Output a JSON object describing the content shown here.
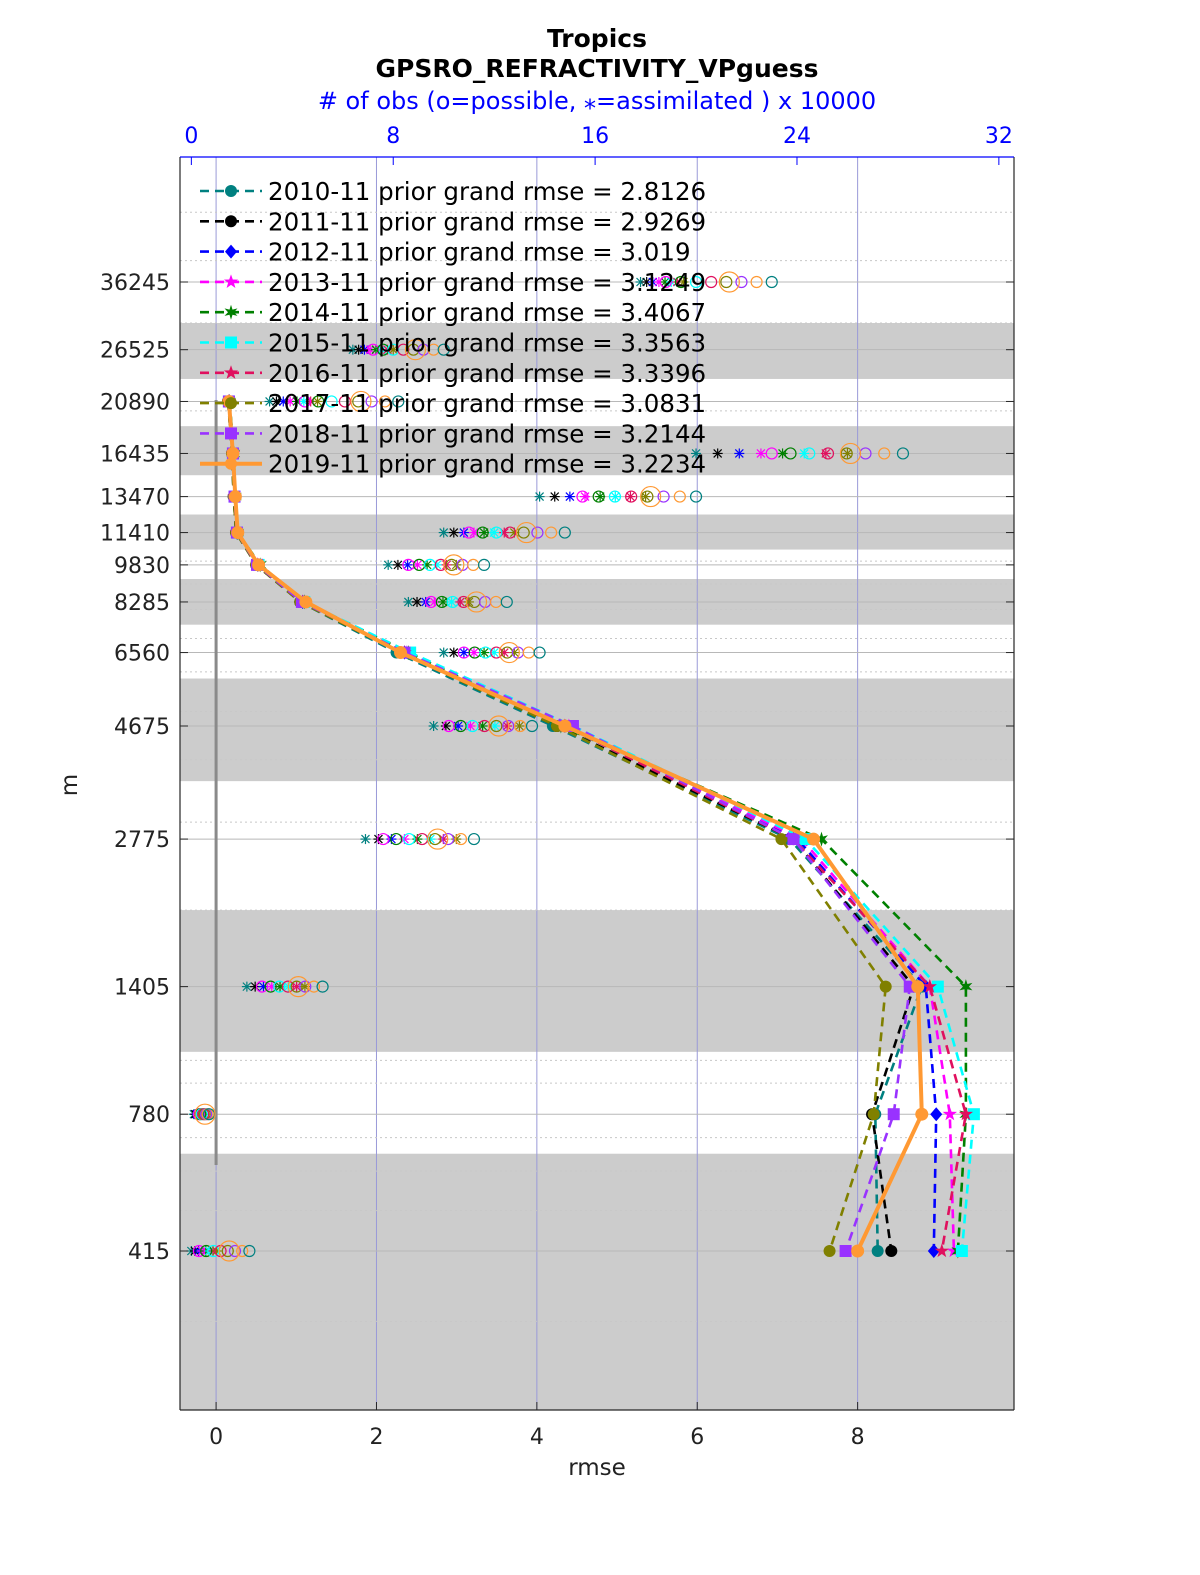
{
  "chart_data": {
    "type": "line",
    "title": "Tropics",
    "subtitle": "GPSRO_REFRACTIVITY_VPguess",
    "top_axis_label": "# of obs (o=possible, ⁎=assimilated ) x 10000",
    "xlabel": "rmse",
    "ylabel": "m",
    "xlim": [
      -0.45,
      9.95
    ],
    "x_ticks": [
      "0",
      "2",
      "4",
      "6",
      "8"
    ],
    "top_xlim": [
      -0.45,
      32.6
    ],
    "top_x_ticks": [
      "0",
      "8",
      "16",
      "24",
      "32"
    ],
    "y_scale": "log",
    "y_ticks": [
      "36245",
      "26525",
      "20890",
      "16435",
      "13470",
      "11410",
      "9830",
      "8285",
      "6560",
      "4675",
      "2775",
      "1405",
      "780",
      "415"
    ],
    "y_tick_values": [
      36245,
      26525,
      20890,
      16435,
      13470,
      11410,
      9830,
      8285,
      6560,
      4675,
      2775,
      1405,
      780,
      415
    ],
    "shaded_bands": [
      [
        23175,
        30000
      ],
      [
        14865,
        18640
      ],
      [
        10550,
        12400
      ],
      [
        7460,
        9210
      ],
      [
        3625,
        5820
      ],
      [
        1040,
        2000
      ],
      [
        170,
        650
      ]
    ],
    "legend_location": "top-left",
    "grid": true,
    "series": [
      {
        "name": "2010-11 prior grand rmse = 2.8126",
        "color": "#008080",
        "marker": "circle",
        "dashed": true,
        "y": [
          20890,
          16435,
          13470,
          11410,
          9830,
          8285,
          6560,
          4675,
          2775,
          1405,
          780,
          415
        ],
        "values": [
          0.15,
          0.2,
          0.22,
          0.25,
          0.5,
          1.05,
          2.25,
          4.2,
          7.15,
          8.8,
          8.22,
          8.25
        ]
      },
      {
        "name": "2011-11 prior grand rmse = 2.9269",
        "color": "#000000",
        "marker": "circle",
        "dashed": true,
        "y": [
          20890,
          16435,
          13470,
          11410,
          9830,
          8285,
          6560,
          4675,
          2775,
          1405,
          780,
          415
        ],
        "values": [
          0.15,
          0.2,
          0.22,
          0.25,
          0.5,
          1.05,
          2.3,
          4.25,
          7.2,
          8.7,
          8.18,
          8.42
        ]
      },
      {
        "name": "2012-11 prior grand rmse = 3.019",
        "color": "#0000ff",
        "marker": "diamond",
        "dashed": true,
        "y": [
          20890,
          16435,
          13470,
          11410,
          9830,
          8285,
          6560,
          4675,
          2775,
          1405,
          780,
          415
        ],
        "values": [
          0.16,
          0.21,
          0.23,
          0.26,
          0.52,
          1.08,
          2.35,
          4.35,
          7.25,
          8.85,
          8.98,
          8.95
        ]
      },
      {
        "name": "2013-11 prior grand rmse = 3.1249",
        "color": "#ff00ff",
        "marker": "star",
        "dashed": true,
        "y": [
          20890,
          16435,
          13470,
          11410,
          9830,
          8285,
          6560,
          4675,
          2775,
          1405,
          780,
          415
        ],
        "values": [
          0.16,
          0.21,
          0.23,
          0.26,
          0.52,
          1.1,
          2.38,
          4.4,
          7.3,
          8.9,
          9.15,
          9.2
        ]
      },
      {
        "name": "2014-11 prior grand rmse = 3.4067",
        "color": "#008000",
        "marker": "hexagram",
        "dashed": true,
        "y": [
          20890,
          16435,
          13470,
          11410,
          9830,
          8285,
          6560,
          4675,
          2775,
          1405,
          780,
          415
        ],
        "values": [
          0.17,
          0.22,
          0.24,
          0.27,
          0.55,
          1.1,
          2.4,
          4.3,
          7.55,
          9.35,
          9.35,
          9.25
        ]
      },
      {
        "name": "2015-11 prior grand rmse = 3.3563",
        "color": "#00ffff",
        "marker": "square",
        "dashed": true,
        "y": [
          20890,
          16435,
          13470,
          11410,
          9830,
          8285,
          6560,
          4675,
          2775,
          1405,
          780,
          415
        ],
        "values": [
          0.16,
          0.21,
          0.23,
          0.26,
          0.53,
          1.1,
          2.42,
          4.45,
          7.35,
          9.0,
          9.45,
          9.3
        ]
      },
      {
        "name": "2016-11 prior grand rmse = 3.3396",
        "color": "#e0105e",
        "marker": "star",
        "dashed": true,
        "y": [
          20890,
          16435,
          13470,
          11410,
          9830,
          8285,
          6560,
          4675,
          2775,
          1405,
          780,
          415
        ],
        "values": [
          0.16,
          0.21,
          0.23,
          0.26,
          0.52,
          1.08,
          2.35,
          4.35,
          7.2,
          8.9,
          9.35,
          9.05
        ]
      },
      {
        "name": "2017-11 prior grand rmse = 3.0831",
        "color": "#808000",
        "marker": "circle",
        "dashed": true,
        "y": [
          20890,
          16435,
          13470,
          11410,
          9830,
          8285,
          6560,
          4675,
          2775,
          1405,
          780,
          415
        ],
        "values": [
          0.15,
          0.2,
          0.22,
          0.25,
          0.5,
          1.05,
          2.3,
          4.25,
          7.05,
          8.35,
          8.2,
          7.65
        ]
      },
      {
        "name": "2018-11 prior grand rmse = 3.2144",
        "color": "#9932ff",
        "marker": "square",
        "dashed": true,
        "y": [
          20890,
          16435,
          13470,
          11410,
          9830,
          8285,
          6560,
          4675,
          2775,
          1405,
          780,
          415
        ],
        "values": [
          0.16,
          0.21,
          0.23,
          0.26,
          0.51,
          1.07,
          2.35,
          4.45,
          7.2,
          8.65,
          8.45,
          7.85
        ]
      },
      {
        "name": "2019-11 prior grand rmse = 3.2234",
        "color": "#ff9933",
        "marker": "circle",
        "dashed": false,
        "y": [
          20890,
          16435,
          13470,
          11410,
          9830,
          8285,
          6560,
          4675,
          2775,
          1405,
          780,
          415
        ],
        "values": [
          0.16,
          0.21,
          0.24,
          0.27,
          0.53,
          1.12,
          2.3,
          4.35,
          7.45,
          8.75,
          8.8,
          8.0
        ]
      }
    ],
    "obs_counts": {
      "y": [
        36245,
        26525,
        20890,
        16435,
        13470,
        11410,
        9830,
        8285,
        6560,
        4675,
        2775,
        1405,
        780,
        415
      ],
      "assimilated_low": [
        17.8,
        6.4,
        3.1,
        20.0,
        13.8,
        10.0,
        7.8,
        8.6,
        10.0,
        9.6,
        6.9,
        2.2,
        0.1,
        0.0
      ],
      "assimilated_high": [
        19.5,
        8.0,
        5.0,
        26.0,
        18.0,
        12.8,
        10.5,
        11.0,
        12.8,
        13.0,
        10.5,
        4.5,
        0.5,
        1.0
      ],
      "possible_low": [
        18.8,
        7.2,
        4.5,
        23.0,
        15.5,
        11.0,
        8.6,
        9.5,
        10.8,
        10.2,
        7.6,
        2.8,
        0.3,
        0.3
      ],
      "possible_high": [
        23.0,
        10.0,
        8.2,
        28.2,
        20.0,
        14.8,
        11.6,
        12.5,
        13.8,
        13.5,
        11.2,
        5.2,
        0.7,
        2.3
      ]
    }
  }
}
